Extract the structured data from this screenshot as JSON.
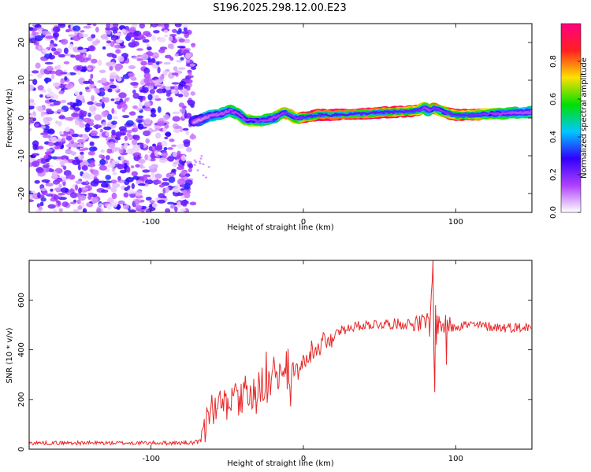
{
  "title": "S196.2025.298.12.00.E23",
  "chart_data": [
    {
      "type": "heatmap",
      "title": "S196.2025.298.12.00.E23",
      "xlabel": "Height of straight line (km)",
      "ylabel": "Frequency (Hz)",
      "xlim": [
        -180,
        150
      ],
      "ylim": [
        -25,
        25
      ],
      "xticks": [
        -100,
        0,
        100
      ],
      "yticks": [
        -20,
        -10,
        0,
        10,
        20
      ],
      "noise_region_x": [
        -180,
        -72
      ],
      "ridge": {
        "x": [
          -72,
          -68,
          -62,
          -55,
          -48,
          -42,
          -38,
          -32,
          -26,
          -20,
          -14,
          -12,
          -8,
          -4,
          0,
          10,
          20,
          30,
          40,
          50,
          60,
          70,
          75,
          80,
          82,
          86,
          90,
          95,
          100,
          110,
          120,
          130,
          140,
          150
        ],
        "freq": [
          -1.0,
          -0.5,
          0.5,
          1.0,
          2.0,
          1.0,
          -0.5,
          -0.8,
          -0.6,
          -0.2,
          1.2,
          1.5,
          0.6,
          -0.2,
          0.2,
          0.8,
          0.8,
          1.0,
          1.2,
          1.4,
          1.6,
          1.8,
          2.0,
          2.8,
          2.0,
          2.6,
          2.0,
          1.2,
          0.8,
          0.8,
          1.0,
          1.2,
          1.4,
          1.6
        ],
        "amplitude": [
          0.3,
          0.35,
          0.45,
          0.5,
          0.55,
          0.6,
          0.65,
          0.7,
          0.6,
          0.55,
          0.7,
          0.8,
          0.75,
          0.7,
          0.9,
          0.95,
          0.97,
          0.97,
          0.95,
          0.93,
          0.92,
          0.9,
          0.85,
          0.6,
          0.55,
          0.85,
          0.7,
          0.8,
          0.9,
          0.85,
          0.7,
          0.6,
          0.55,
          0.5
        ]
      },
      "colorbar": {
        "label": "Normalized spectral amplitude",
        "range": [
          0,
          1
        ],
        "ticks": [
          "0.0",
          "0.2",
          "0.4",
          "0.6",
          "0.8"
        ],
        "tick_values": [
          0.0,
          0.2,
          0.4,
          0.6,
          0.8
        ],
        "colors": [
          "#ffffff",
          "#b040ff",
          "#3000ff",
          "#00c8ff",
          "#00e000",
          "#ffe000",
          "#ff2020",
          "#ff0080"
        ]
      }
    },
    {
      "type": "line",
      "xlabel": "Height of straight line (km)",
      "ylabel": "SNR (10 * v/v)",
      "xlim": [
        -180,
        150
      ],
      "ylim": [
        0,
        760
      ],
      "xticks": [
        -100,
        0,
        100
      ],
      "yticks": [
        0,
        200,
        400,
        600
      ],
      "line_color": "#e8292a",
      "series": [
        {
          "name": "SNR",
          "x": [
            -180,
            -150,
            -120,
            -90,
            -75,
            -68,
            -66,
            -62,
            -55,
            -48,
            -40,
            -32,
            -24,
            -16,
            -8,
            0,
            8,
            16,
            24,
            30,
            40,
            50,
            60,
            70,
            78,
            82,
            84,
            85,
            86,
            88,
            92,
            96,
            100,
            110,
            120,
            130,
            140,
            150
          ],
          "y": [
            25,
            25,
            25,
            25,
            25,
            28,
            70,
            150,
            170,
            190,
            210,
            240,
            260,
            290,
            300,
            340,
            400,
            440,
            470,
            490,
            500,
            505,
            505,
            505,
            505,
            510,
            520,
            560,
            480,
            505,
            500,
            500,
            500,
            500,
            495,
            490,
            490,
            490
          ],
          "noise": [
            8,
            8,
            8,
            8,
            8,
            10,
            40,
            60,
            65,
            70,
            70,
            70,
            65,
            60,
            55,
            40,
            30,
            25,
            22,
            20,
            20,
            22,
            22,
            25,
            40,
            60,
            160,
            200,
            150,
            60,
            40,
            40,
            25,
            20,
            20,
            20,
            20,
            20
          ]
        }
      ],
      "spikes": [
        {
          "x": 85,
          "y": 760
        },
        {
          "x": 86,
          "y": 230
        },
        {
          "x": 84,
          "y": 630
        },
        {
          "x": 94,
          "y": 340
        }
      ]
    }
  ]
}
